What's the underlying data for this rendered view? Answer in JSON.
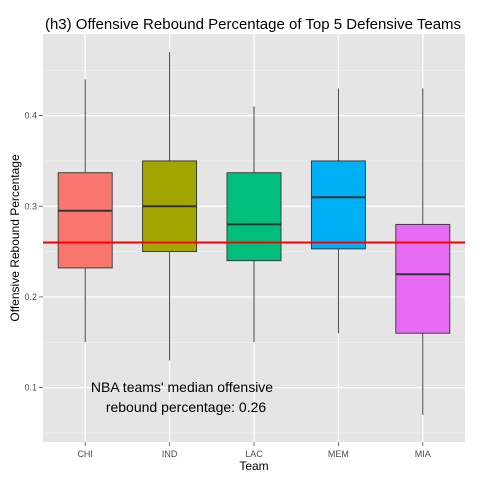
{
  "chart_data": {
    "type": "boxplot",
    "title": "(h3) Offensive Rebound Percentage of Top 5 Defensive Teams",
    "xlabel": "Team",
    "ylabel": "Offensive Rebound Percentage",
    "categories": [
      "CHI",
      "IND",
      "LAC",
      "MEM",
      "MIA"
    ],
    "boxes": [
      {
        "team": "CHI",
        "min": 0.15,
        "q1": 0.232,
        "median": 0.295,
        "q3": 0.337,
        "max": 0.44,
        "color": "#F8766D"
      },
      {
        "team": "IND",
        "min": 0.13,
        "q1": 0.25,
        "median": 0.3,
        "q3": 0.35,
        "max": 0.47,
        "color": "#A3A500"
      },
      {
        "team": "LAC",
        "min": 0.15,
        "q1": 0.24,
        "median": 0.28,
        "q3": 0.337,
        "max": 0.41,
        "color": "#00BF7D"
      },
      {
        "team": "MEM",
        "min": 0.16,
        "q1": 0.253,
        "median": 0.31,
        "q3": 0.35,
        "max": 0.43,
        "color": "#00B0F6"
      },
      {
        "team": "MIA",
        "min": 0.07,
        "q1": 0.16,
        "median": 0.225,
        "q3": 0.28,
        "max": 0.43,
        "color": "#E76BF3"
      }
    ],
    "reference_line": {
      "y": 0.26,
      "color": "#FF0000"
    },
    "annotation": [
      "NBA teams' median offensive",
      "rebound percentage: 0.26"
    ],
    "y_ticks": [
      0.1,
      0.2,
      0.3,
      0.4
    ],
    "y_tick_labels": [
      "0.1",
      "0.2",
      "0.3",
      "0.4"
    ],
    "ylim": [
      0.04,
      0.49
    ],
    "grid": true,
    "panel_background": "#E5E5E5",
    "grid_color": "#FFFFFF"
  }
}
